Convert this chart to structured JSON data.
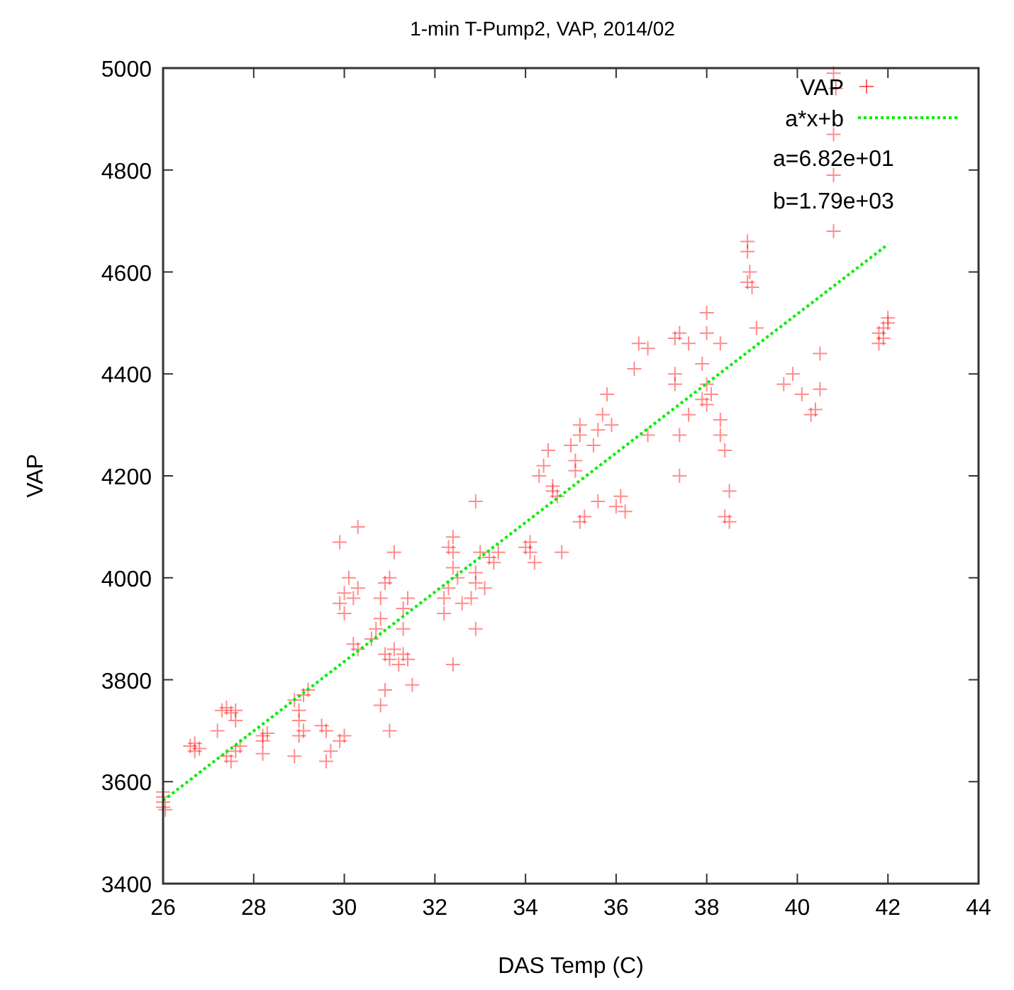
{
  "chart_data": {
    "type": "scatter",
    "title": "1-min T-Pump2, VAP, 2014/02",
    "xlabel": "DAS Temp (C)",
    "ylabel": "VAP",
    "xlim": [
      26,
      44
    ],
    "xticks": [
      26,
      28,
      30,
      32,
      34,
      36,
      38,
      40,
      42,
      44
    ],
    "ylim": [
      3400,
      5000
    ],
    "yticks": [
      3400,
      3600,
      3800,
      4000,
      4200,
      4400,
      4600,
      4800,
      5000
    ],
    "grid": false,
    "legend": "top right",
    "annotations": [
      "a=6.82e+01",
      "b=1.79e+03"
    ],
    "series": [
      {
        "name": "VAP",
        "color": "#ff0000",
        "marker": "cross",
        "x": [
          26,
          26,
          26,
          26.05,
          26,
          26.6,
          26.7,
          26.8,
          26.7,
          27.3,
          27.4,
          27.5,
          27.6,
          27.6,
          27.2,
          27.4,
          27.5,
          27.6,
          27.7,
          28.2,
          28.2,
          28.2,
          28.3,
          28.9,
          29,
          29,
          29.1,
          29,
          29.1,
          29.2,
          28.9,
          29.5,
          29.6,
          29.7,
          29.6,
          29.9,
          30,
          29.9,
          30,
          30,
          30.2,
          29.9,
          30.1,
          30.3,
          30.3,
          30.3,
          30.2,
          30.6,
          30.7,
          30.8,
          30.8,
          30.9,
          31,
          31.1,
          30.9,
          31,
          30.8,
          31,
          30.9,
          31.1,
          31.2,
          31.3,
          31.4,
          31.3,
          31.4,
          31.3,
          31.5,
          32.2,
          32.3,
          32.4,
          32.4,
          32.3,
          32.4,
          32.2,
          32.4,
          32.6,
          32.5,
          32.8,
          32.9,
          32.9,
          32.9,
          33,
          32.9,
          33.1,
          33.3,
          33.2,
          33.4,
          34,
          34.1,
          34.1,
          34.2,
          34.3,
          34.4,
          34.5,
          34.6,
          34.6,
          34.7,
          34.8,
          35,
          35.1,
          35.1,
          35.2,
          35.2,
          35.3,
          35.2,
          35.5,
          35.6,
          35.7,
          35.8,
          35.9,
          35.6,
          36,
          36.1,
          36.2,
          36.5,
          36.7,
          36.4,
          36.7,
          37.3,
          37.4,
          37.3,
          37.3,
          37.4,
          37.4,
          37.6,
          37.6,
          37.9,
          38,
          38,
          38,
          38,
          37.9,
          38.1,
          38.3,
          38.3,
          38.4,
          38.5,
          38.4,
          38.5,
          38.3,
          38.9,
          38.9,
          38.95,
          38.9,
          39,
          39.1,
          39.7,
          39.9,
          40.1,
          40.3,
          40.4,
          40.5,
          40.5,
          40.8,
          40.8,
          40.85,
          40.8,
          40.8,
          41.8,
          41.9,
          42,
          42,
          41.8,
          41.9
        ],
        "values": [
          3550,
          3560,
          3570,
          3545,
          3580,
          3670,
          3660,
          3665,
          3675,
          3740,
          3745,
          3735,
          3740,
          3720,
          3700,
          3650,
          3640,
          3660,
          3670,
          3690,
          3680,
          3655,
          3695,
          3760,
          3740,
          3720,
          3770,
          3690,
          3700,
          3780,
          3650,
          3710,
          3700,
          3660,
          3640,
          3680,
          3690,
          3950,
          3970,
          3930,
          3960,
          4070,
          4000,
          4100,
          3980,
          3860,
          3870,
          3880,
          3900,
          3920,
          3960,
          3990,
          4000,
          4050,
          3850,
          3840,
          3750,
          3700,
          3780,
          3860,
          3830,
          3850,
          3840,
          3940,
          3960,
          3900,
          3790,
          3960,
          3980,
          4020,
          4050,
          4060,
          4080,
          3930,
          3830,
          3950,
          4000,
          3960,
          3990,
          4010,
          4150,
          4050,
          3900,
          3980,
          4030,
          4040,
          4050,
          4060,
          4050,
          4070,
          4030,
          4200,
          4220,
          4250,
          4180,
          4170,
          4160,
          4050,
          4260,
          4230,
          4210,
          4280,
          4110,
          4120,
          4300,
          4260,
          4290,
          4320,
          4360,
          4300,
          4150,
          4140,
          4160,
          4130,
          4460,
          4450,
          4410,
          4280,
          4470,
          4480,
          4400,
          4380,
          4280,
          4200,
          4460,
          4320,
          4350,
          4340,
          4380,
          4480,
          4520,
          4420,
          4360,
          4310,
          4280,
          4250,
          4170,
          4120,
          4110,
          4460,
          4660,
          4640,
          4600,
          4580,
          4570,
          4490,
          4380,
          4400,
          4360,
          4320,
          4330,
          4370,
          4440,
          4680,
          4990,
          4960,
          4870,
          4790,
          4480,
          4490,
          4500,
          4510,
          4460,
          4470
        ]
      },
      {
        "name": "a*x+b",
        "type": "line",
        "color": "#00ee00",
        "line_style": "dotted",
        "marker": "none",
        "x": [
          26,
          42
        ],
        "values": [
          3563,
          4654
        ]
      }
    ]
  }
}
